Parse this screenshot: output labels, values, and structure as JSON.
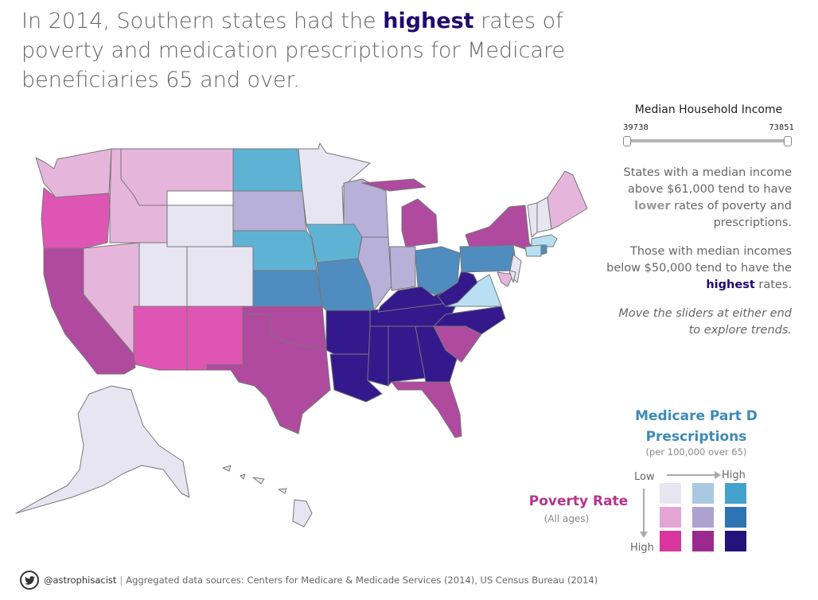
{
  "headline": {
    "part1": "In 2014, Southern states had the ",
    "highlight": "highest",
    "part2": " rates of poverty and medication prescriptions for Medicare beneficiaries  65 and over."
  },
  "slider": {
    "title": "Median Household Income",
    "min": "39738",
    "max": "73851"
  },
  "notes": {
    "n1_a": "States with a median income above $61,000 tend to have ",
    "n1_b": "lower",
    "n1_c": " rates of poverty and prescriptions.",
    "n2_a": "Those with median incomes below $50,000 tend to have the ",
    "n2_b": "highest",
    "n2_c": " rates.",
    "n3": "Move the sliders at either end to explore trends."
  },
  "legend": {
    "title_line1": "Medicare Part D",
    "title_line2": "Prescriptions",
    "subtitle": "(per 100,000 over 65)",
    "low": "Low",
    "high_x": "High",
    "high_y": "High",
    "poverty_title": "Poverty Rate",
    "poverty_sub": "(All ages)",
    "colors": [
      [
        "#e7e5f2",
        "#a9c8e2",
        "#45a2cc"
      ],
      [
        "#e3a6d4",
        "#ada2cf",
        "#2e73b2"
      ],
      [
        "#d8359f",
        "#9a2a8e",
        "#23137a"
      ]
    ]
  },
  "footer": {
    "handle": "@astrophisacist",
    "sources": "Aggregated data sources: Centers for Medicare & Medicade Services (2014), US Census Bureau (2014)"
  },
  "palette": {
    "c00": "#e7e5f2",
    "c01": "#b9e0f2",
    "c02": "#5eb3d5",
    "c10": "#e6b5db",
    "c11": "#b7b0d8",
    "c12": "#4f8cc0",
    "c20": "#df55b4",
    "c21": "#b04a9f",
    "c22": "#34198c"
  }
}
